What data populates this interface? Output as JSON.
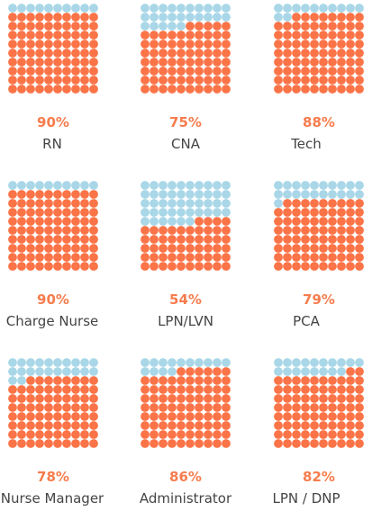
{
  "chart_data": {
    "type": "waffle",
    "units_per_chart": 100,
    "grid": "10x10",
    "items": [
      {
        "label": "RN",
        "percent_label": "90%",
        "value": 90
      },
      {
        "label": "CNA",
        "percent_label": "75%",
        "value": 75
      },
      {
        "label": "Tech",
        "percent_label": "88%",
        "value": 88
      },
      {
        "label": "Charge Nurse",
        "percent_label": "90%",
        "value": 90
      },
      {
        "label": "LPN/LVN",
        "percent_label": "54%",
        "value": 54
      },
      {
        "label": "PCA",
        "percent_label": "79%",
        "value": 79
      },
      {
        "label": "Nurse Manager",
        "percent_label": "78%",
        "value": 78
      },
      {
        "label": "Administrator",
        "percent_label": "86%",
        "value": 86
      },
      {
        "label": "LPN / DNP",
        "percent_label": "82%",
        "value": 82
      }
    ],
    "colors": {
      "filled": "#fb7448",
      "empty": "#a9d7e8",
      "percent_text": "#f67c4d",
      "label_text": "#444444"
    }
  }
}
